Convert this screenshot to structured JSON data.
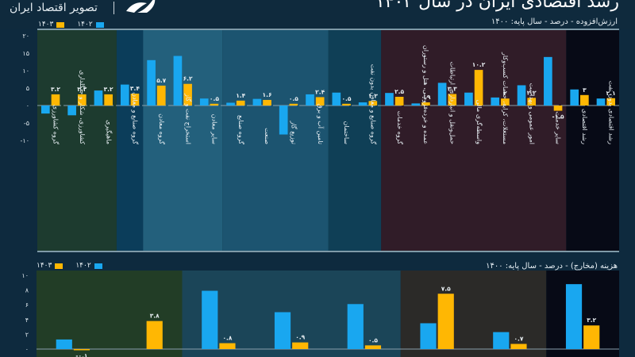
{
  "header": {
    "logo_text": "تصویر اقتصاد ایران",
    "title": "رشد اقتصادی ایران در سال ۱۴۰۳"
  },
  "colors": {
    "series_1402": "#19a7f0",
    "series_1403": "#ffb703",
    "background": "#0e2a3e"
  },
  "chart_data": [
    {
      "type": "bar",
      "title": "ارزش‌افزوده - درصد - سال پایه: ۱۴۰۰",
      "ylim": [
        -10,
        20
      ],
      "yticks": [
        -10,
        -5,
        0,
        5,
        10,
        15,
        20
      ],
      "ytick_labels": [
        "-۱۰",
        "-۵",
        "۰",
        "۵",
        "۱۰",
        "۱۵",
        "۲۰"
      ],
      "legend": [
        "۱۴۰۲",
        "۱۴۰۳"
      ],
      "legend_position": "top-left",
      "groups": [
        {
          "name": "agriculture",
          "color": "#1d3b2f",
          "span": 3
        },
        {
          "name": "industry-mining",
          "color": "#0b3d5a",
          "span": 1
        },
        {
          "name": "mining",
          "color": "#23607c",
          "span": 3
        },
        {
          "name": "industry",
          "color": "#1c5470",
          "span": 4
        },
        {
          "name": "industry-no-oil",
          "color": "#0f3f56",
          "span": 2
        },
        {
          "name": "services",
          "color": "#301c28",
          "span": 7
        },
        {
          "name": "growth",
          "color": "#070a16",
          "span": 2
        }
      ],
      "categories": [
        "گروه کشاورزی",
        "کشاورزی، شکار و جنگلداری",
        "ماهیگیری",
        "گروه صنایع و معادن",
        "گروه معادن",
        "استخراج نفت و گاز",
        "سایر معادن",
        "گروه صنایع",
        "صنعت",
        "توزیع گاز",
        "تامین آب و برق",
        "ساختمان",
        "گروه صنایع و معادن بدون نفت",
        "گروه خدمات",
        "عمده و خرده‌فروشی، هتل و رستوران",
        "حمل‌ونقل و انبارداری، ارتباطات",
        "واسطه‌گری مالی",
        "مستغلات، کرایه، خدمات کسب‌وکار",
        "امور عمومی و بهداشت",
        "سایر خدمات",
        "رشد اقتصادی",
        "رشد اقتصادی بدون نفت"
      ],
      "series": [
        {
          "name": "۱۴۰۲",
          "values": [
            -2.3,
            -2.8,
            4.3,
            6.0,
            13.0,
            14.2,
            2.0,
            0.8,
            1.9,
            -8.3,
            3.2,
            3.7,
            0.9,
            3.6,
            0.6,
            6.5,
            3.7,
            2.3,
            5.8,
            13.9,
            4.6,
            2.0
          ]
        },
        {
          "name": "۱۴۰۳",
          "values": [
            3.2,
            3.2,
            3.2,
            3.4,
            5.7,
            6.2,
            0.5,
            1.4,
            1.6,
            0.5,
            2.4,
            0.5,
            1.3,
            2.5,
            0.9,
            3.3,
            10.2,
            2.0,
            2.2,
            -1.5,
            3.0,
            2.1
          ]
        }
      ],
      "data_labels_1403": [
        "۳.۲",
        "۳.۲",
        "۳.۲",
        "۳.۴",
        "۵.۷",
        "۶.۲",
        "۰.۵",
        "۱.۴",
        "۱.۶",
        "۰.۵",
        "۲.۴",
        "۰.۵",
        "۱.۳",
        "۲.۵",
        "۰.۹",
        "۳.۳",
        "۱۰.۲",
        "۲",
        "۲.۲",
        "-۱.۵",
        "۳",
        "۲.۱"
      ]
    },
    {
      "type": "bar",
      "title": "هزینه (مخارج) - درصد - سال پایه: ۱۴۰۰",
      "ylim": [
        0,
        10
      ],
      "yticks": [
        0,
        2,
        4,
        6,
        8,
        10
      ],
      "ytick_labels": [
        "۰",
        "۲",
        "۴",
        "۶",
        "۸",
        "۱۰"
      ],
      "legend": [
        "۱۴۰۲",
        "۱۴۰۳"
      ],
      "legend_position": "top-left",
      "groups": [
        {
          "name": "group-1",
          "color": "#223d26",
          "span": 2
        },
        {
          "name": "group-2",
          "color": "#1b4558",
          "span": 3
        },
        {
          "name": "group-3",
          "color": "#2b2a28",
          "span": 2
        },
        {
          "name": "group-4",
          "color": "#070a16",
          "span": 1
        }
      ],
      "categories": [
        "",
        "",
        "",
        "",
        "",
        "",
        "",
        ""
      ],
      "series": [
        {
          "name": "۱۴۰۲",
          "values": [
            1.3,
            0.0,
            7.9,
            5.0,
            6.1,
            3.5,
            2.3,
            8.8
          ]
        },
        {
          "name": "۱۴۰۳",
          "values": [
            -0.1,
            3.8,
            0.8,
            0.9,
            0.5,
            7.5,
            0.7,
            3.2
          ]
        }
      ],
      "data_labels_1403": [
        "-۰.۱",
        "۳.۸",
        "۰.۸",
        "۰.۹",
        "۰.۵",
        "۷.۵",
        "۰.۷",
        "۳.۲"
      ]
    }
  ]
}
